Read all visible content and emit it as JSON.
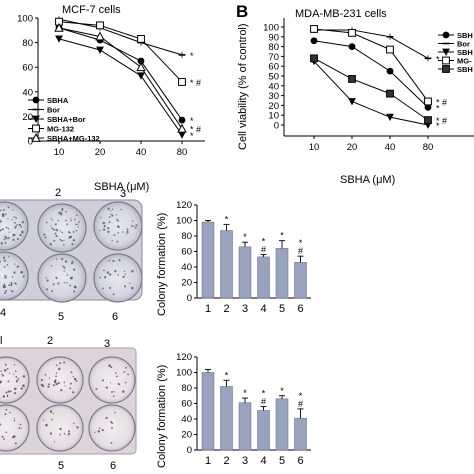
{
  "chart_data": [
    {
      "id": "A",
      "type": "line",
      "title": "MCF-7 cells",
      "xlabel": "SBHA (μM)",
      "ylabel": "",
      "categories": [
        "10",
        "20",
        "40",
        "80"
      ],
      "ylim": [
        0,
        100
      ],
      "yticks": [
        "0",
        "20",
        "40",
        "60",
        "80",
        "100"
      ],
      "series": [
        {
          "name": "SBHA",
          "marker": "filled-circle",
          "values": [
            92,
            82,
            65,
            17
          ]
        },
        {
          "name": "Bor",
          "marker": "small-dash",
          "values": [
            99,
            92,
            80,
            70
          ]
        },
        {
          "name": "SBHA+Bor",
          "marker": "filled-triangle-down",
          "values": [
            83,
            74,
            53,
            5
          ]
        },
        {
          "name": "MG-132",
          "marker": "open-square",
          "values": [
            97,
            94,
            83,
            48
          ]
        },
        {
          "name": "SBHA+MG-132",
          "marker": "open-triangle-up",
          "values": [
            92,
            85,
            60,
            10
          ]
        }
      ],
      "annotations": [
        {
          "x": "80",
          "text": "*",
          "row": 1
        },
        {
          "x": "80",
          "text": "*",
          "row": 2
        },
        {
          "x": "80",
          "text": "*",
          "row": 3
        },
        {
          "x": "80",
          "text": "* #",
          "row": 4
        },
        {
          "x": "80",
          "text": "* #",
          "row": 5
        }
      ]
    },
    {
      "id": "B",
      "letter": "B",
      "type": "line",
      "title": "MDA-MB-231 cells",
      "xlabel": "SBHA (μM)",
      "ylabel": "Cell viability (% of control)",
      "categories": [
        "10",
        "20",
        "40",
        "80"
      ],
      "ylim": [
        0,
        100
      ],
      "yticks": [
        "0",
        "10",
        "20",
        "30",
        "40",
        "50",
        "60",
        "70",
        "80",
        "90",
        "100"
      ],
      "series": [
        {
          "name": "SBHA",
          "legend_text": "SBH",
          "marker": "filled-circle",
          "values": [
            86,
            80,
            55,
            18
          ]
        },
        {
          "name": "Bor",
          "marker": "small-dash",
          "values": [
            97,
            97,
            90,
            68
          ]
        },
        {
          "name": "SBHA+Bor",
          "legend_text": "SBH",
          "marker": "filled-triangle-down",
          "values": [
            65,
            24,
            8,
            0
          ]
        },
        {
          "name": "MG-132",
          "legend_text": "MG-",
          "marker": "open-square",
          "values": [
            98,
            94,
            77,
            24
          ]
        },
        {
          "name": "SBHA+MG-132",
          "legend_text": "SBH",
          "marker": "filled-square",
          "values": [
            68,
            47,
            32,
            5
          ]
        }
      ],
      "annotations": [
        {
          "x": "80",
          "text": "*",
          "row": 1
        },
        {
          "x": "80",
          "text": "*",
          "row": 2
        },
        {
          "x": "80",
          "text": "*",
          "row": 3
        },
        {
          "x": "80",
          "text": "* #",
          "row": 4
        },
        {
          "x": "80",
          "text": "* #",
          "row": 5
        }
      ]
    },
    {
      "id": "C1",
      "type": "bar",
      "title": "",
      "xlabel": "",
      "ylabel": "Colony formation (%)",
      "categories": [
        "1",
        "2",
        "3",
        "4",
        "5",
        "6"
      ],
      "values": [
        98,
        87,
        66,
        53,
        64,
        46
      ],
      "errors": [
        2,
        8,
        6,
        3,
        10,
        8
      ],
      "ylim": [
        0,
        120
      ],
      "yticks": [
        "0",
        "20",
        "40",
        "60",
        "80",
        "100",
        "120"
      ],
      "bar_color": "#9aa3bd",
      "annotations": [
        {
          "category": "2",
          "text": "*"
        },
        {
          "category": "3",
          "text": "*"
        },
        {
          "category": "4",
          "text": "#"
        },
        {
          "category": "4",
          "text": "*"
        },
        {
          "category": "5",
          "text": "*"
        },
        {
          "category": "6",
          "text": "#"
        },
        {
          "category": "6",
          "text": "*"
        }
      ]
    },
    {
      "id": "C2",
      "type": "bar",
      "title": "",
      "xlabel": "",
      "ylabel": "Colony formation (%)",
      "categories": [
        "1",
        "2",
        "3",
        "4",
        "5",
        "6"
      ],
      "values": [
        100,
        82,
        61,
        51,
        66,
        41
      ],
      "errors": [
        4,
        8,
        6,
        5,
        4,
        12
      ],
      "ylim": [
        0,
        120
      ],
      "yticks": [
        "0",
        "20",
        "40",
        "60",
        "80",
        "100",
        "120"
      ],
      "bar_color": "#9aa3bd",
      "annotations": [
        {
          "category": "2",
          "text": "*"
        },
        {
          "category": "3",
          "text": "*"
        },
        {
          "category": "4",
          "text": "#"
        },
        {
          "category": "4",
          "text": "*"
        },
        {
          "category": "5",
          "text": "*"
        },
        {
          "category": "6",
          "text": "#"
        },
        {
          "category": "6",
          "text": "*"
        }
      ]
    }
  ],
  "plates": [
    {
      "id": "plate1",
      "labels": [
        "2",
        "3",
        "4",
        "5",
        "6"
      ]
    },
    {
      "id": "plate2",
      "labels": [
        "l",
        "2",
        "3",
        "5",
        "6"
      ]
    }
  ]
}
